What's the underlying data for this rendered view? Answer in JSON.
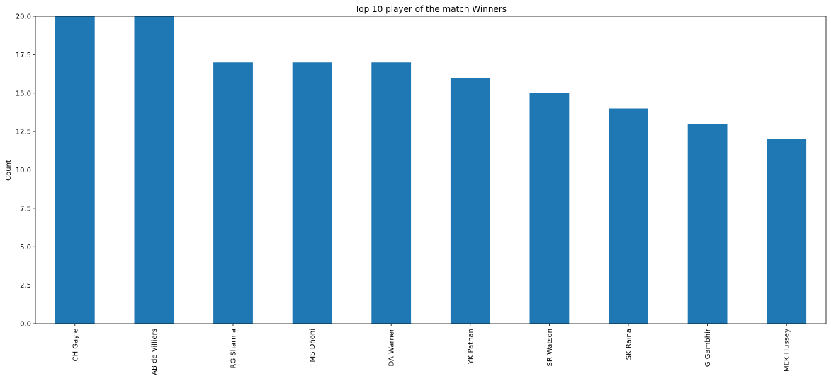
{
  "chart_data": {
    "type": "bar",
    "title": "Top 10 player of the match Winners",
    "xlabel": "",
    "ylabel": "Count",
    "categories": [
      "CH Gayle",
      "AB de Villiers",
      "RG Sharma",
      "MS Dhoni",
      "DA Warner",
      "YK Pathan",
      "SR Watson",
      "SK Raina",
      "G Gambhir",
      "MEK Hussey"
    ],
    "values": [
      21,
      20,
      17,
      17,
      17,
      16,
      15,
      14,
      13,
      12
    ],
    "ylim": [
      0,
      20
    ],
    "yticks": [
      "0.0",
      "2.5",
      "5.0",
      "7.5",
      "10.0",
      "12.5",
      "15.0",
      "17.5",
      "20.0"
    ],
    "bar_color": "#1f77b4",
    "grid": false,
    "legend": "none"
  }
}
